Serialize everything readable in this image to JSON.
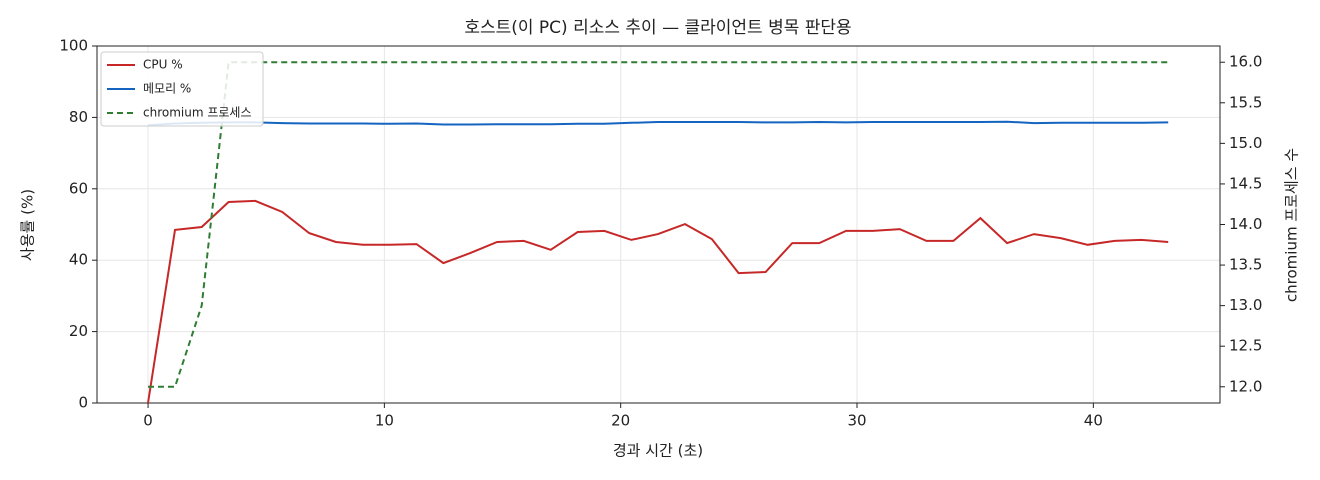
{
  "chart_data": {
    "type": "line",
    "title": "호스트(이 PC) 리소스 추이 — 클라이언트 병목 판단용",
    "x_label": "경과 시간 (초)",
    "y_label": "사용률 (%)",
    "y2_label": "chromium 프로세스 수",
    "x": [
      0,
      1.14,
      2.27,
      3.41,
      4.54,
      5.68,
      6.82,
      7.95,
      9.09,
      10.22,
      11.36,
      12.5,
      13.63,
      14.77,
      15.9,
      17.04,
      18.18,
      19.31,
      20.45,
      21.58,
      22.72,
      23.86,
      24.99,
      26.13,
      27.26,
      28.4,
      29.54,
      30.67,
      31.81,
      32.94,
      34.08,
      35.22,
      36.35,
      37.49,
      38.62,
      39.76,
      40.9,
      42.03,
      43.17
    ],
    "series": [
      {
        "name": "CPU %",
        "color": "#c62828",
        "dash": false,
        "values": [
          0,
          48.5,
          49.3,
          56.3,
          56.6,
          53.5,
          47.6,
          45.1,
          44.3,
          44.3,
          44.5,
          39.2,
          42,
          45.1,
          45.4,
          42.9,
          47.9,
          48.2,
          45.7,
          47.3,
          50.1,
          45.9,
          36.4,
          36.7,
          44.8,
          44.8,
          48.2,
          48.2,
          48.7,
          45.4,
          45.4,
          51.8,
          44.8,
          47.3,
          46.2,
          44.3,
          45.4,
          45.7,
          45.1
        ]
      },
      {
        "name": "메모리 %",
        "color": "#1565c0",
        "dash": false,
        "values": [
          77.8,
          78.3,
          78.5,
          78.6,
          78.6,
          78.4,
          78.3,
          78.3,
          78.3,
          78.2,
          78.3,
          78.0,
          78.0,
          78.1,
          78.1,
          78.1,
          78.2,
          78.2,
          78.5,
          78.7,
          78.7,
          78.7,
          78.7,
          78.6,
          78.6,
          78.7,
          78.6,
          78.7,
          78.7,
          78.7,
          78.7,
          78.7,
          78.8,
          78.4,
          78.5,
          78.5,
          78.5,
          78.5,
          78.6
        ]
      },
      {
        "name": "chromium 프로세스",
        "color": "#2e7d32",
        "dash": true,
        "axis": "y2",
        "values": [
          12,
          12,
          13,
          16,
          16,
          16,
          16,
          16,
          16,
          16,
          16,
          16,
          16,
          16,
          16,
          16,
          16,
          16,
          16,
          16,
          16,
          16,
          16,
          16,
          16,
          16,
          16,
          16,
          16,
          16,
          16,
          16,
          16,
          16,
          16,
          16,
          16,
          16,
          16
        ]
      }
    ],
    "xlim": [
      -2.16,
      45.36
    ],
    "xticks": [
      0,
      10,
      20,
      30,
      40
    ],
    "ylim": [
      0,
      100
    ],
    "yticks": [
      0,
      20,
      40,
      60,
      80,
      100
    ],
    "y2lim": [
      11.8,
      16.2
    ],
    "y2ticks": [
      {
        "value": 12,
        "label": "12.0"
      },
      {
        "value": 12.5,
        "label": "12.5"
      },
      {
        "value": 13,
        "label": "13.0"
      },
      {
        "value": 13.5,
        "label": "13.5"
      },
      {
        "value": 14,
        "label": "14.0"
      },
      {
        "value": 14.5,
        "label": "14.5"
      },
      {
        "value": 15,
        "label": "15.0"
      },
      {
        "value": 15.5,
        "label": "15.5"
      },
      {
        "value": 16,
        "label": "16.0"
      }
    ],
    "grid": true,
    "legend": "upper left"
  }
}
